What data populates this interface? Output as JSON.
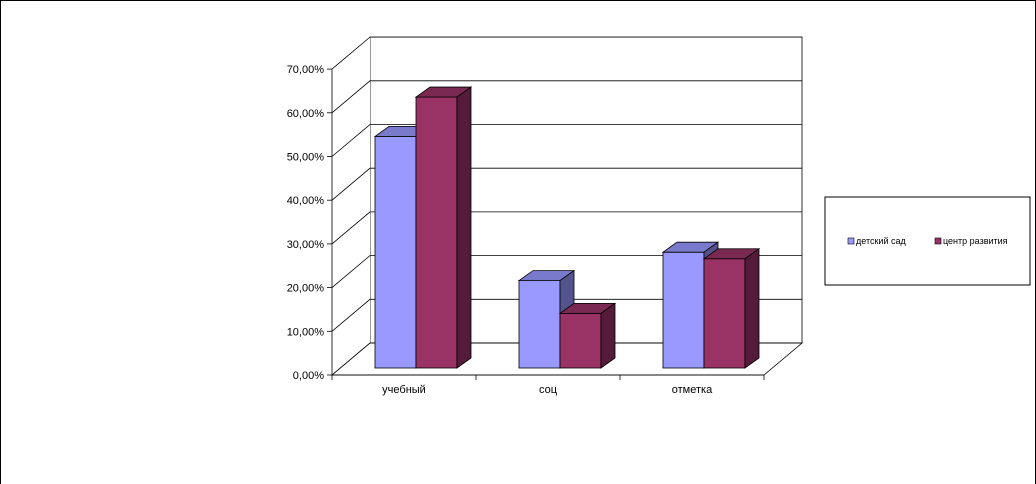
{
  "chart_data": {
    "type": "bar",
    "categories": [
      "учебный",
      "соц",
      "отметка"
    ],
    "series": [
      {
        "name": "детский сад",
        "values": [
          0.53,
          0.2,
          0.265
        ],
        "color": "#9999FF"
      },
      {
        "name": "центр развития",
        "values": [
          0.62,
          0.125,
          0.25
        ],
        "color": "#993366"
      }
    ],
    "y_ticks": [
      "0,00%",
      "10,00%",
      "20,00%",
      "30,00%",
      "40,00%",
      "50,00%",
      "60,00%",
      "70,00%"
    ],
    "ylim": [
      0,
      0.7
    ],
    "grid": true,
    "legend": "right",
    "title": "",
    "xlabel": "",
    "ylabel": ""
  }
}
